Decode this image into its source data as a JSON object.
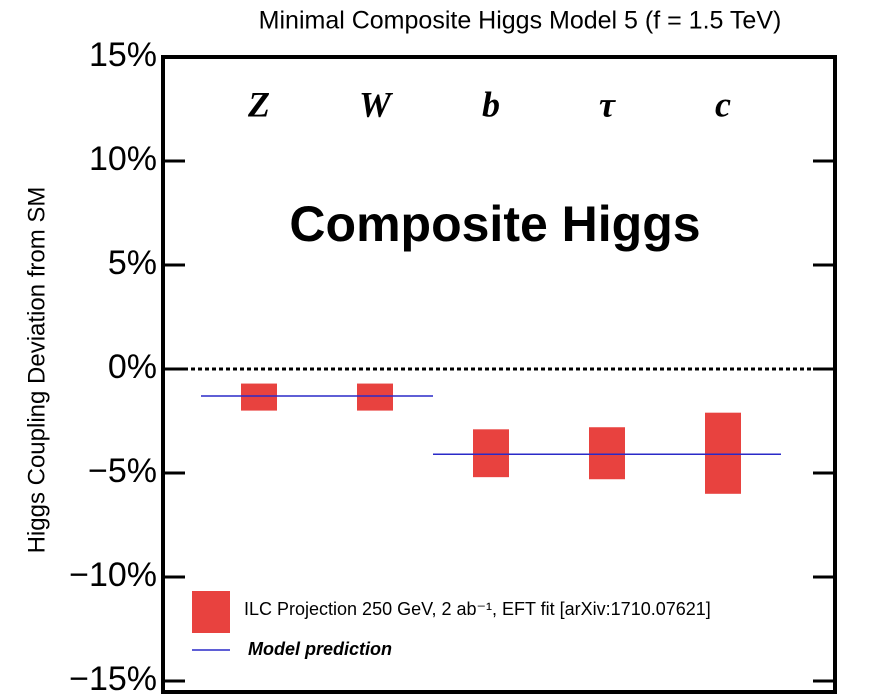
{
  "chart_data": {
    "type": "errorbar",
    "title": "Minimal Composite Higgs Model 5 (f = 1.5 TeV)",
    "annotation": "Composite Higgs",
    "y_label": "Higgs Coupling Deviation from SM",
    "categories": [
      "Z",
      "W",
      "b",
      "τ",
      "c"
    ],
    "series": [
      {
        "name": "ILC Projection 250 GeV, 2 ab⁻¹, EFT fit [arXiv:1710.07621]",
        "color": "#e8423f",
        "values": [
          -1.35,
          -1.35,
          -4.05,
          -4.05,
          -4.05
        ],
        "errors": [
          0.65,
          0.65,
          1.15,
          1.25,
          1.95
        ]
      },
      {
        "name": "Model prediction",
        "color": "#2a2ac8",
        "values": [
          -1.3,
          -1.3,
          -4.1,
          -4.1,
          -4.1
        ]
      }
    ],
    "ylim": [
      -15,
      15
    ],
    "yticks": [
      {
        "value": -15,
        "label": "−15%"
      },
      {
        "value": -10,
        "label": "−10%"
      },
      {
        "value": -5,
        "label": "−5%"
      },
      {
        "value": 0,
        "label": "0%"
      },
      {
        "value": 5,
        "label": "5%"
      },
      {
        "value": 10,
        "label": "10%"
      },
      {
        "value": 15,
        "label": "15%"
      }
    ],
    "zero_line": true
  }
}
